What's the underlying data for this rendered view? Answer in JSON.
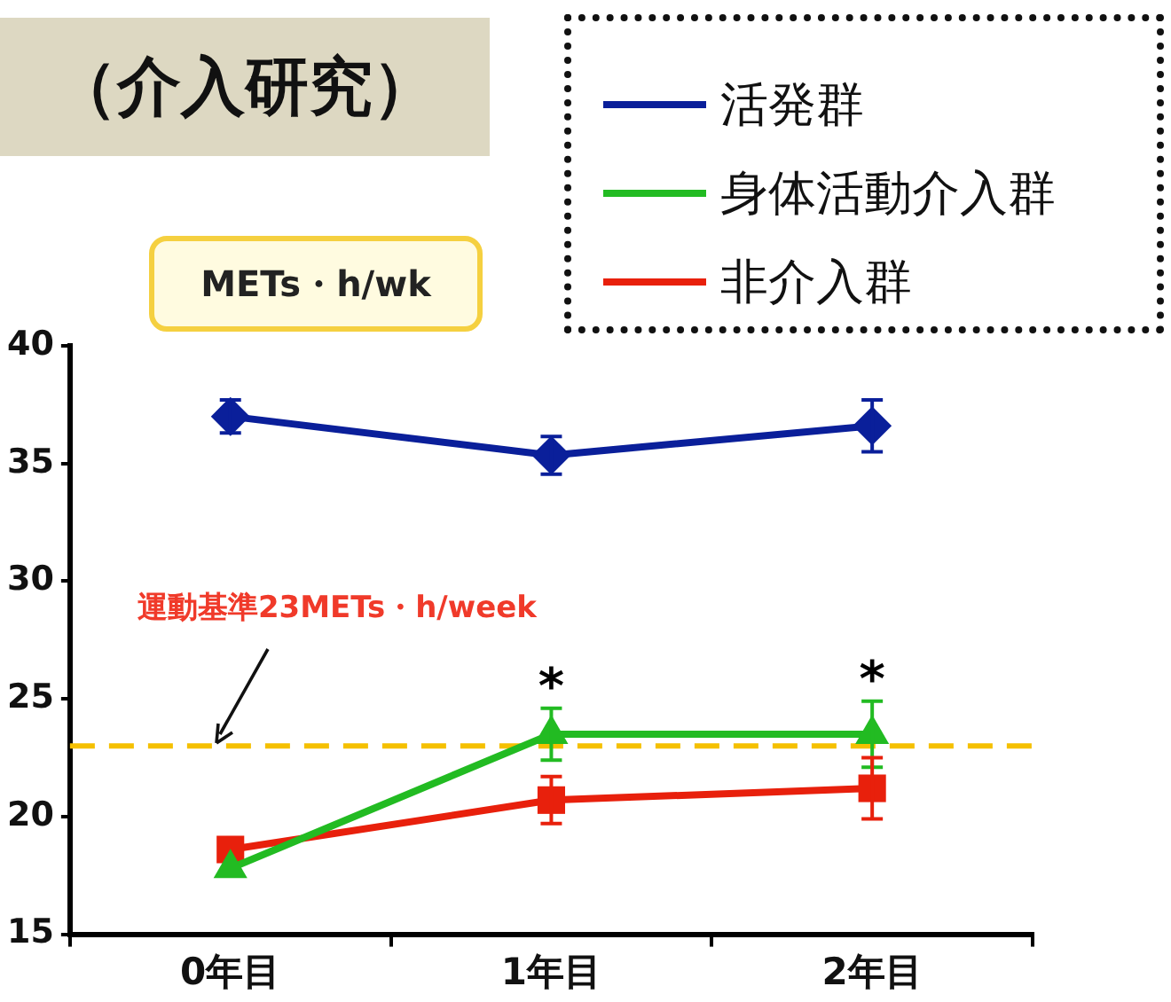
{
  "chart_data": {
    "type": "line",
    "title": "（介入研究）",
    "ylabel": "METs・h/wk",
    "categories": [
      "0年目",
      "1年目",
      "2年目"
    ],
    "series": [
      {
        "name": "活発群",
        "color": "#0a1f9a",
        "marker": "diamond",
        "values": [
          37.0,
          35.35,
          36.6
        ],
        "errors": [
          0.7,
          0.8,
          1.1
        ]
      },
      {
        "name": "身体活動介入群",
        "color": "#22bb22",
        "marker": "triangle",
        "values": [
          17.8,
          23.5,
          23.5
        ],
        "errors": [
          null,
          1.1,
          1.4
        ]
      },
      {
        "name": "非介入群",
        "color": "#e8200c",
        "marker": "square",
        "values": [
          18.6,
          20.7,
          21.2
        ],
        "errors": [
          null,
          1.0,
          1.3
        ]
      }
    ],
    "ylim": [
      15,
      40
    ],
    "yticks": [
      15,
      20,
      25,
      30,
      35,
      40
    ],
    "grid": false,
    "legend": "top right",
    "line_style": "solid",
    "ref_lines": [
      {
        "axis": "y",
        "value": 23,
        "label": "運動基準23METs・h/week",
        "color": "#f5c000",
        "line_style": "dashed"
      }
    ],
    "annotations": [
      "*",
      "*"
    ]
  }
}
